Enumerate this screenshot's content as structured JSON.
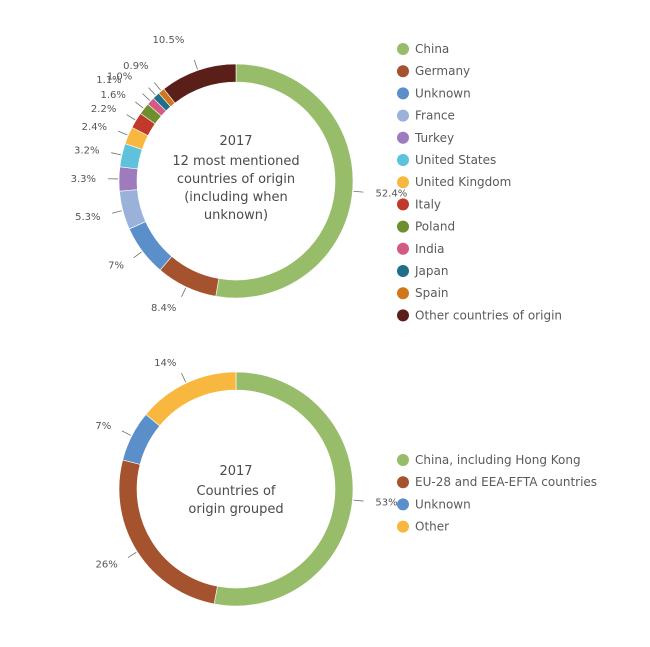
{
  "chart_data": [
    {
      "type": "pie",
      "center_title": "2017",
      "center_lines": [
        "12 most mentioned",
        "countries of origin",
        "(including when",
        "unknown)"
      ],
      "slices": [
        {
          "name": "China",
          "value": 52.4,
          "label": "52.4%",
          "color": "#97bd6a"
        },
        {
          "name": "Germany",
          "value": 8.4,
          "label": "8.4%",
          "color": "#a5532e"
        },
        {
          "name": "Unknown",
          "value": 7.0,
          "label": "7%",
          "color": "#5b8fc9"
        },
        {
          "name": "France",
          "value": 5.3,
          "label": "5.3%",
          "color": "#9ab2d9"
        },
        {
          "name": "Turkey",
          "value": 3.3,
          "label": "3.3%",
          "color": "#9d7bbd"
        },
        {
          "name": "United States",
          "value": 3.2,
          "label": "3.2%",
          "color": "#5ec2dc"
        },
        {
          "name": "United Kingdom",
          "value": 2.4,
          "label": "2.4%",
          "color": "#f8b840"
        },
        {
          "name": "Italy",
          "value": 2.2,
          "label": "2.2%",
          "color": "#c0392b"
        },
        {
          "name": "Poland",
          "value": 1.6,
          "label": "1.6%",
          "color": "#6f8f2f"
        },
        {
          "name": "India",
          "value": 1.1,
          "label": "1.1%",
          "color": "#d45a84"
        },
        {
          "name": "Japan",
          "value": 1.0,
          "label": "1.0%",
          "color": "#1f6f8b"
        },
        {
          "name": "Spain",
          "value": 0.9,
          "label": "0.9%",
          "color": "#d2761c"
        },
        {
          "name": "Other countries of origin",
          "value": 10.5,
          "label": "10.5%",
          "color": "#5b1f1a"
        }
      ]
    },
    {
      "type": "pie",
      "center_title": "2017",
      "center_lines": [
        "Countries of",
        "origin grouped"
      ],
      "slices": [
        {
          "name": "China, including Hong Kong",
          "value": 53,
          "label": "53%",
          "color": "#97bd6a"
        },
        {
          "name": "EU-28 and EEA-EFTA countries",
          "value": 26,
          "label": "26%",
          "color": "#a5532e"
        },
        {
          "name": "Unknown",
          "value": 7,
          "label": "7%",
          "color": "#5b8fc9"
        },
        {
          "name": "Other",
          "value": 14,
          "label": "14%",
          "color": "#f8b840"
        }
      ]
    }
  ]
}
